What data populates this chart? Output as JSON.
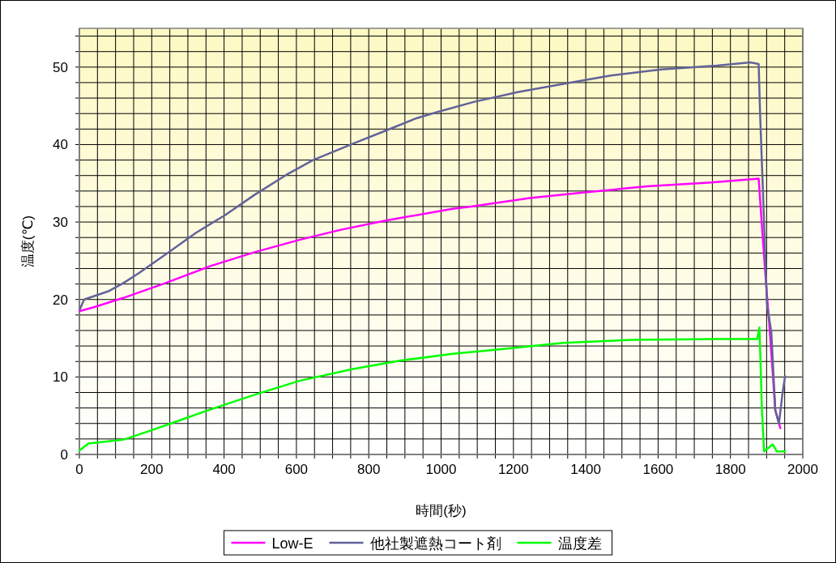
{
  "chart_data": {
    "type": "line",
    "xlabel": "時間(秒)",
    "ylabel": "温度(℃)",
    "xlim": [
      0,
      2000
    ],
    "ylim": [
      0,
      55
    ],
    "xticks": [
      0,
      {
        "value": 50,
        "label": null
      },
      {
        "value": 100,
        "label": null
      },
      {
        "value": 150,
        "label": null
      },
      200,
      {
        "value": 250,
        "label": null
      },
      {
        "value": 300,
        "label": null
      },
      {
        "value": 350,
        "label": null
      },
      400,
      {
        "value": 450,
        "label": null
      },
      {
        "value": 500,
        "label": null
      },
      {
        "value": 550,
        "label": null
      },
      600,
      {
        "value": 650,
        "label": null
      },
      {
        "value": 700,
        "label": null
      },
      {
        "value": 750,
        "label": null
      },
      800,
      {
        "value": 850,
        "label": null
      },
      {
        "value": 900,
        "label": null
      },
      {
        "value": 950,
        "label": null
      },
      1000,
      {
        "value": 1050,
        "label": null
      },
      {
        "value": 1100,
        "label": null
      },
      {
        "value": 1150,
        "label": null
      },
      1200,
      {
        "value": 1250,
        "label": null
      },
      {
        "value": 1300,
        "label": null
      },
      {
        "value": 1350,
        "label": null
      },
      1400,
      {
        "value": 1450,
        "label": null
      },
      {
        "value": 1500,
        "label": null
      },
      {
        "value": 1550,
        "label": null
      },
      1600,
      {
        "value": 1650,
        "label": null
      },
      {
        "value": 1700,
        "label": null
      },
      {
        "value": 1750,
        "label": null
      },
      1800,
      {
        "value": 1850,
        "label": null
      },
      {
        "value": 1900,
        "label": null
      },
      {
        "value": 1950,
        "label": null
      },
      2000
    ],
    "yticks": [
      0,
      {
        "value": 2,
        "label": null
      },
      {
        "value": 4,
        "label": null
      },
      {
        "value": 6,
        "label": null
      },
      {
        "value": 8,
        "label": null
      },
      10,
      {
        "value": 12,
        "label": null
      },
      {
        "value": 14,
        "label": null
      },
      {
        "value": 16,
        "label": null
      },
      {
        "value": 18,
        "label": null
      },
      20,
      {
        "value": 22,
        "label": null
      },
      {
        "value": 24,
        "label": null
      },
      {
        "value": 26,
        "label": null
      },
      {
        "value": 28,
        "label": null
      },
      30,
      {
        "value": 32,
        "label": null
      },
      {
        "value": 34,
        "label": null
      },
      {
        "value": 36,
        "label": null
      },
      {
        "value": 38,
        "label": null
      },
      40,
      {
        "value": 42,
        "label": null
      },
      {
        "value": 44,
        "label": null
      },
      {
        "value": 46,
        "label": null
      },
      {
        "value": 48,
        "label": null
      },
      50,
      {
        "value": 52,
        "label": null
      },
      {
        "value": 54,
        "label": null
      }
    ],
    "grid": true,
    "legend": "bottom",
    "marker": "none",
    "line_style": "solid",
    "series": [
      {
        "name": "Low-E",
        "color": "#ff00ff",
        "x": [
          1,
          40,
          121,
          237,
          361,
          484,
          608,
          723,
          847,
          1032,
          1083,
          1245,
          1391,
          1569,
          1747,
          1878,
          1886,
          1897,
          1909,
          1924,
          1938
        ],
        "values": [
          18.5,
          19.0,
          20.2,
          22.1,
          24.3,
          26.1,
          27.7,
          29.0,
          30.2,
          31.7,
          32.0,
          33.1,
          33.8,
          34.6,
          35.1,
          35.6,
          30.2,
          23.0,
          15.8,
          5.7,
          3.4
        ]
      },
      {
        "name": "他社製遮熱コート剤",
        "color": "#62629a",
        "x": [
          1,
          13,
          82,
          121,
          164,
          241,
          322,
          403,
          484,
          569,
          646,
          766,
          847,
          932,
          990,
          1090,
          1214,
          1345,
          1469,
          1608,
          1762,
          1855,
          1878,
          1882,
          1890,
          1901,
          1913,
          1924,
          1934,
          1944,
          1951
        ],
        "values": [
          18.7,
          20.0,
          21.1,
          22.1,
          23.4,
          25.9,
          28.6,
          30.9,
          33.5,
          36.0,
          38.0,
          40.3,
          41.8,
          43.4,
          44.2,
          45.5,
          46.8,
          47.9,
          48.9,
          49.7,
          50.2,
          50.6,
          50.4,
          43.9,
          33.8,
          19.4,
          15.8,
          5.7,
          4.0,
          7.9,
          10.1
        ]
      },
      {
        "name": "温度差",
        "color": "#00ff00",
        "x": [
          0,
          25,
          121,
          198,
          283,
          368,
          484,
          608,
          754,
          886,
          1032,
          1145,
          1338,
          1531,
          1762,
          1874,
          1880,
          1883,
          1887,
          1893,
          1917,
          1928,
          1951
        ],
        "values": [
          0.5,
          1.4,
          1.9,
          3.1,
          4.5,
          5.9,
          7.7,
          9.5,
          11.0,
          12.1,
          13.0,
          13.5,
          14.4,
          14.8,
          14.9,
          14.9,
          16.4,
          12.2,
          5.8,
          0.4,
          1.3,
          0.4,
          0.4
        ]
      }
    ]
  }
}
